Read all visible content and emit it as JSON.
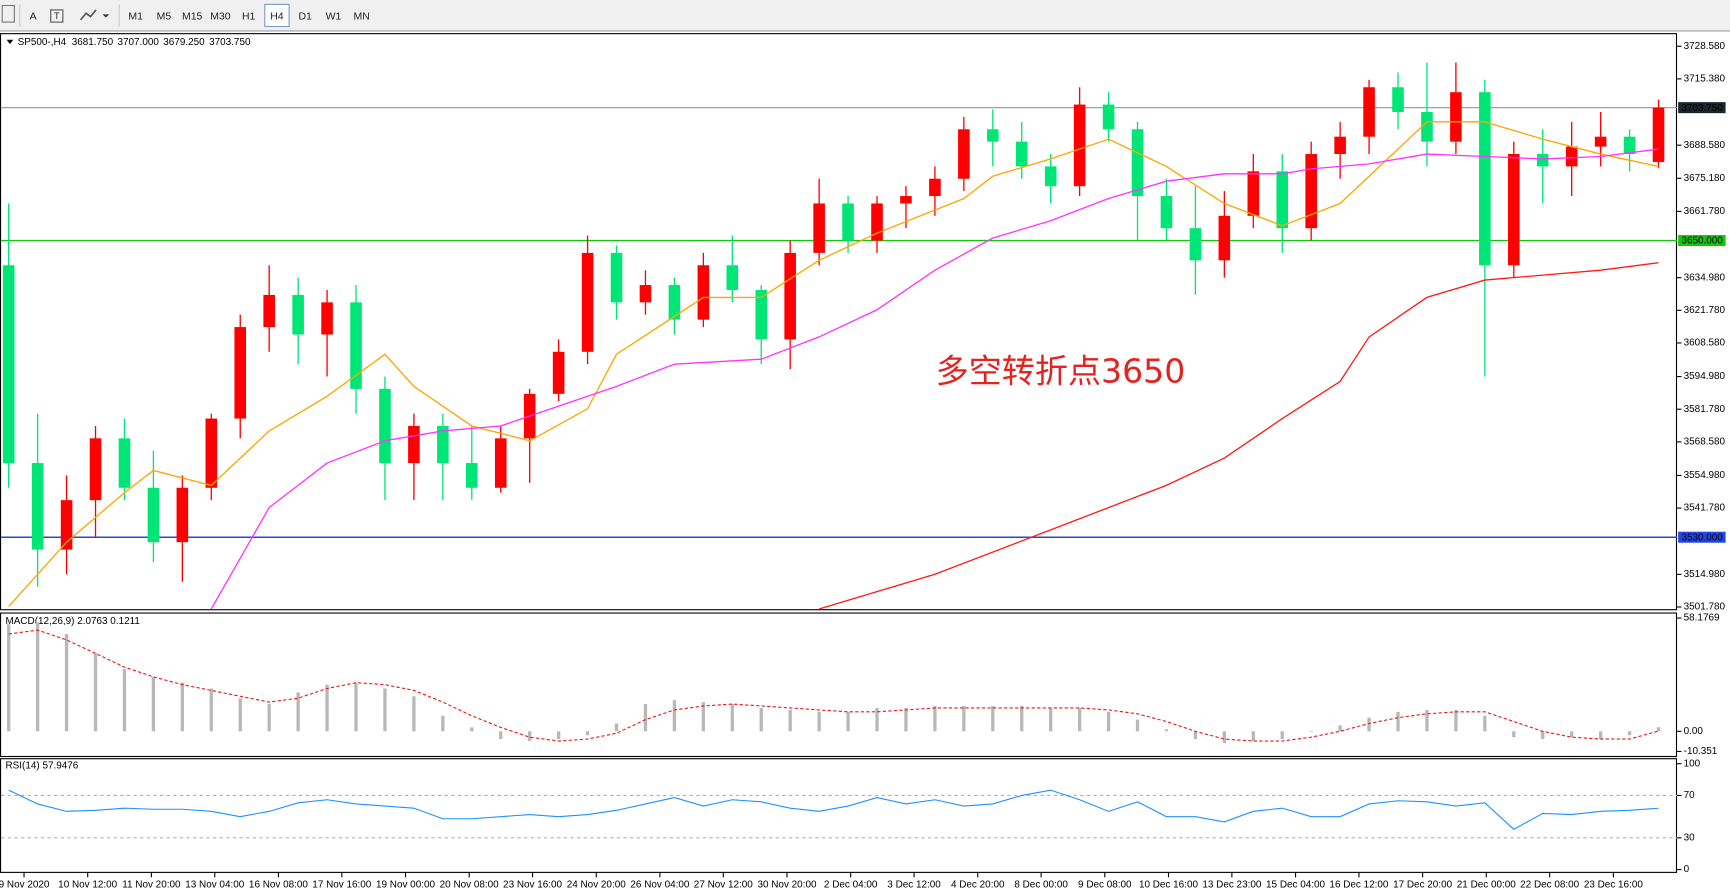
{
  "toolbar": {
    "tools": [
      "A"
    ],
    "timeframes": [
      "M1",
      "M5",
      "M15",
      "M30",
      "H1",
      "H4",
      "D1",
      "W1",
      "MN"
    ],
    "active": 5
  },
  "chart_data": [
    {
      "type": "candlestick",
      "title": "SP500-,H4",
      "header_values": [
        {
          "value": 3681.75,
          "label": "3681.750"
        },
        {
          "value": 3707,
          "label": "3707.000"
        },
        {
          "value": 3679.25,
          "label": "3679.250"
        },
        {
          "value": 3703.75,
          "label": "3703.750"
        }
      ],
      "annotation": "多空转折点3650",
      "up_color": "#ff0000",
      "down_color": "#00e676",
      "open": [
        3640,
        3560,
        3525,
        3545,
        3570,
        3550,
        3528,
        3550,
        3578,
        3615,
        3628,
        3612,
        3625,
        3590,
        3560,
        3575,
        3560,
        3550,
        3570,
        3588,
        3605,
        3645,
        3625,
        3632,
        3618,
        3640,
        3630,
        3610,
        3645,
        3665,
        3650,
        3665,
        3668,
        3675,
        3695,
        3690,
        3680,
        3672,
        3705,
        3695,
        3668,
        3655,
        3642,
        3660,
        3678,
        3655,
        3685,
        3692,
        3712,
        3702,
        3690,
        3710,
        3640,
        3685,
        3680,
        3688,
        3692,
        3681.75
      ],
      "high": [
        3665,
        3580,
        3555,
        3575,
        3578,
        3565,
        3555,
        3580,
        3620,
        3640,
        3635,
        3630,
        3632,
        3595,
        3580,
        3580,
        3575,
        3575,
        3590,
        3610,
        3652,
        3648,
        3638,
        3635,
        3645,
        3652,
        3632,
        3650,
        3675,
        3668,
        3668,
        3672,
        3680,
        3700,
        3703,
        3698,
        3685,
        3712,
        3710,
        3698,
        3675,
        3672,
        3670,
        3685,
        3685,
        3690,
        3698,
        3715,
        3718,
        3722,
        3722,
        3715,
        3690,
        3695,
        3698,
        3702,
        3695,
        3707
      ],
      "low": [
        3550,
        3510,
        3515,
        3530,
        3545,
        3520,
        3512,
        3545,
        3570,
        3605,
        3600,
        3595,
        3580,
        3545,
        3545,
        3545,
        3545,
        3548,
        3552,
        3585,
        3600,
        3618,
        3620,
        3612,
        3615,
        3625,
        3600,
        3598,
        3640,
        3645,
        3645,
        3655,
        3660,
        3670,
        3680,
        3675,
        3665,
        3668,
        3690,
        3650,
        3650,
        3628,
        3635,
        3655,
        3645,
        3650,
        3675,
        3685,
        3695,
        3680,
        3685,
        3595,
        3635,
        3665,
        3668,
        3680,
        3678,
        3679.25
      ],
      "close": [
        3560,
        3525,
        3545,
        3570,
        3550,
        3528,
        3550,
        3578,
        3615,
        3628,
        3612,
        3625,
        3590,
        3560,
        3575,
        3560,
        3550,
        3570,
        3588,
        3605,
        3645,
        3625,
        3632,
        3618,
        3640,
        3630,
        3610,
        3645,
        3665,
        3650,
        3665,
        3668,
        3675,
        3695,
        3690,
        3680,
        3672,
        3705,
        3695,
        3668,
        3655,
        3642,
        3660,
        3678,
        3655,
        3685,
        3692,
        3712,
        3702,
        3690,
        3710,
        3640,
        3685,
        3680,
        3688,
        3692,
        3685,
        3703.75
      ],
      "overlays": [
        {
          "color": "#ffa500",
          "x": [
            0,
            2,
            4,
            5,
            7,
            9,
            11,
            13,
            14,
            16,
            18,
            20,
            21,
            24,
            26,
            28,
            30,
            33,
            34,
            36,
            38,
            40,
            42,
            44,
            46,
            47,
            49,
            51,
            53,
            55,
            57
          ],
          "values": [
            3502,
            3528,
            3548,
            3557,
            3551,
            3573,
            3587,
            3604,
            3591,
            3575,
            3569,
            3582,
            3604,
            3627,
            3627,
            3642,
            3653,
            3667,
            3676,
            3683,
            3691,
            3680,
            3665,
            3656,
            3665,
            3676,
            3698,
            3698,
            3691,
            3685,
            3680
          ]
        },
        {
          "color": "#ff33ff",
          "x": [
            7,
            9,
            11,
            13,
            15,
            17,
            21,
            23,
            26,
            28,
            30,
            32,
            34,
            36,
            38,
            40,
            42,
            44,
            45,
            47,
            49,
            51,
            53,
            55,
            57
          ],
          "values": [
            3501,
            3542,
            3560,
            3569,
            3573,
            3575,
            3591,
            3600,
            3602,
            3611,
            3622,
            3638,
            3651,
            3658,
            3667,
            3674,
            3677,
            3677,
            3679,
            3681,
            3685,
            3684,
            3683,
            3684,
            3687
          ]
        },
        {
          "color": "#ff1a1a",
          "x": [
            28,
            32,
            36,
            40,
            42,
            44,
            46,
            47,
            49,
            51,
            53,
            55,
            57
          ],
          "values": [
            3501,
            3515,
            3533,
            3551,
            3562,
            3578,
            3593,
            3611,
            3627,
            3634,
            3636,
            3638,
            3641
          ]
        }
      ],
      "levels": [
        {
          "value": 3703.75,
          "label": "3703.750",
          "color": "#8a97a6",
          "box": "#1b2530"
        },
        {
          "value": 3650,
          "label": "3650.000",
          "color": "#16c60c",
          "box": "#16c60c"
        },
        {
          "value": 3530,
          "label": "3530.000",
          "color": "#2347e6",
          "box": "#2347e6"
        }
      ],
      "xlim": [
        -0.3,
        57.64
      ],
      "ylim": [
        3500.9,
        3733.9
      ],
      "yticks": [
        {
          "value": 3728.58,
          "label": "3728.580"
        },
        {
          "value": 3715.38,
          "label": "3715.380"
        },
        {
          "value": 3688.58,
          "label": "3688.580"
        },
        {
          "value": 3675.18,
          "label": "3675.180"
        },
        {
          "value": 3661.78,
          "label": "3661.780"
        },
        {
          "value": 3634.98,
          "label": "3634.980"
        },
        {
          "value": 3621.78,
          "label": "3621.780"
        },
        {
          "value": 3608.58,
          "label": "3608.580"
        },
        {
          "value": 3594.98,
          "label": "3594.980"
        },
        {
          "value": 3581.78,
          "label": "3581.780"
        },
        {
          "value": 3568.58,
          "label": "3568.580"
        },
        {
          "value": 3554.98,
          "label": "3554.980"
        },
        {
          "value": 3541.78,
          "label": "3541.780"
        },
        {
          "value": 3514.98,
          "label": "3514.980"
        },
        {
          "value": 3501.78,
          "label": "3501.780"
        }
      ],
      "xticks": [
        {
          "value": 0.53,
          "label": "9 Nov 2020"
        },
        {
          "value": 2.73,
          "label": "10 Nov 12:00"
        },
        {
          "value": 4.93,
          "label": "11 Nov 20:00"
        },
        {
          "value": 7.12,
          "label": "13 Nov 04:00"
        },
        {
          "value": 9.32,
          "label": "16 Nov 08:00"
        },
        {
          "value": 11.51,
          "label": "17 Nov 16:00"
        },
        {
          "value": 13.71,
          "label": "19 Nov 00:00"
        },
        {
          "value": 15.91,
          "label": "20 Nov 08:00"
        },
        {
          "value": 18.1,
          "label": "23 Nov 16:00"
        },
        {
          "value": 20.3,
          "label": "24 Nov 20:00"
        },
        {
          "value": 22.5,
          "label": "26 Nov 04:00"
        },
        {
          "value": 24.69,
          "label": "27 Nov 12:00"
        },
        {
          "value": 26.89,
          "label": "30 Nov 20:00"
        },
        {
          "value": 29.09,
          "label": "2 Dec 04:00"
        },
        {
          "value": 31.28,
          "label": "3 Dec 12:00"
        },
        {
          "value": 33.48,
          "label": "4 Dec 20:00"
        },
        {
          "value": 35.67,
          "label": "8 Dec 00:00"
        },
        {
          "value": 37.87,
          "label": "9 Dec 08:00"
        },
        {
          "value": 40.07,
          "label": "10 Dec 16:00"
        },
        {
          "value": 42.26,
          "label": "13 Dec 23:00"
        },
        {
          "value": 44.46,
          "label": "15 Dec 04:00"
        },
        {
          "value": 46.65,
          "label": "16 Dec 12:00"
        },
        {
          "value": 48.85,
          "label": "17 Dec 20:00"
        },
        {
          "value": 51.05,
          "label": "21 Dec 00:00"
        },
        {
          "value": 53.24,
          "label": "22 Dec 08:00"
        },
        {
          "value": 55.44,
          "label": "23 Dec 16:00"
        }
      ]
    },
    {
      "type": "bar",
      "title": "MACD(12,26,9) 2.0763 0.1211",
      "color": "#b8b8b8",
      "values": [
        55,
        56,
        50,
        40,
        32,
        28,
        25,
        22,
        17,
        14,
        20,
        24,
        25,
        22,
        18,
        8,
        2,
        -4,
        -5,
        -4,
        -2,
        4,
        14,
        16,
        15,
        14,
        12,
        11,
        10,
        10,
        12,
        12,
        13,
        13,
        13,
        13,
        12,
        12,
        10,
        6,
        1,
        -4,
        -6,
        -5,
        -4,
        0,
        3,
        7,
        10,
        11,
        11,
        8,
        -3,
        -4,
        -3,
        -4,
        -2,
        2.0763
      ],
      "signal": {
        "color": "#e81818",
        "values": [
          50,
          52,
          47,
          40,
          33,
          28,
          24,
          21,
          18,
          15,
          17,
          22,
          25,
          24,
          21,
          15,
          8,
          2,
          -3,
          -5,
          -4,
          -1,
          6,
          11,
          13,
          14,
          13,
          12,
          11,
          10,
          10,
          11,
          12,
          12,
          12,
          12,
          12,
          12,
          11,
          9,
          5,
          0,
          -4,
          -5,
          -5,
          -3,
          0,
          4,
          7,
          9,
          10,
          10,
          5,
          0,
          -3,
          -4,
          -4,
          0.1211
        ]
      },
      "ylim": [
        -12.67,
        60.5
      ],
      "yticks": [
        58.1769,
        {
          "value": 0,
          "label": "0.00"
        },
        -10.351
      ]
    },
    {
      "type": "line",
      "title": "RSI(14) 57.9476",
      "color": "#1e90ff",
      "values": [
        75,
        62,
        55,
        56,
        58,
        57,
        57,
        55,
        50,
        55,
        63,
        66,
        62,
        60,
        58,
        48,
        48,
        50,
        52,
        50,
        52,
        56,
        62,
        68,
        60,
        66,
        64,
        58,
        55,
        60,
        68,
        62,
        66,
        60,
        62,
        70,
        75,
        66,
        55,
        64,
        50,
        50,
        45,
        55,
        58,
        50,
        50,
        62,
        65,
        64,
        60,
        63,
        38,
        53,
        52,
        55,
        56,
        57.9476
      ],
      "levels": [
        70,
        30
      ],
      "ylim": [
        -2.1,
        104.2
      ],
      "yticks": [
        100,
        70,
        30,
        0
      ]
    }
  ]
}
